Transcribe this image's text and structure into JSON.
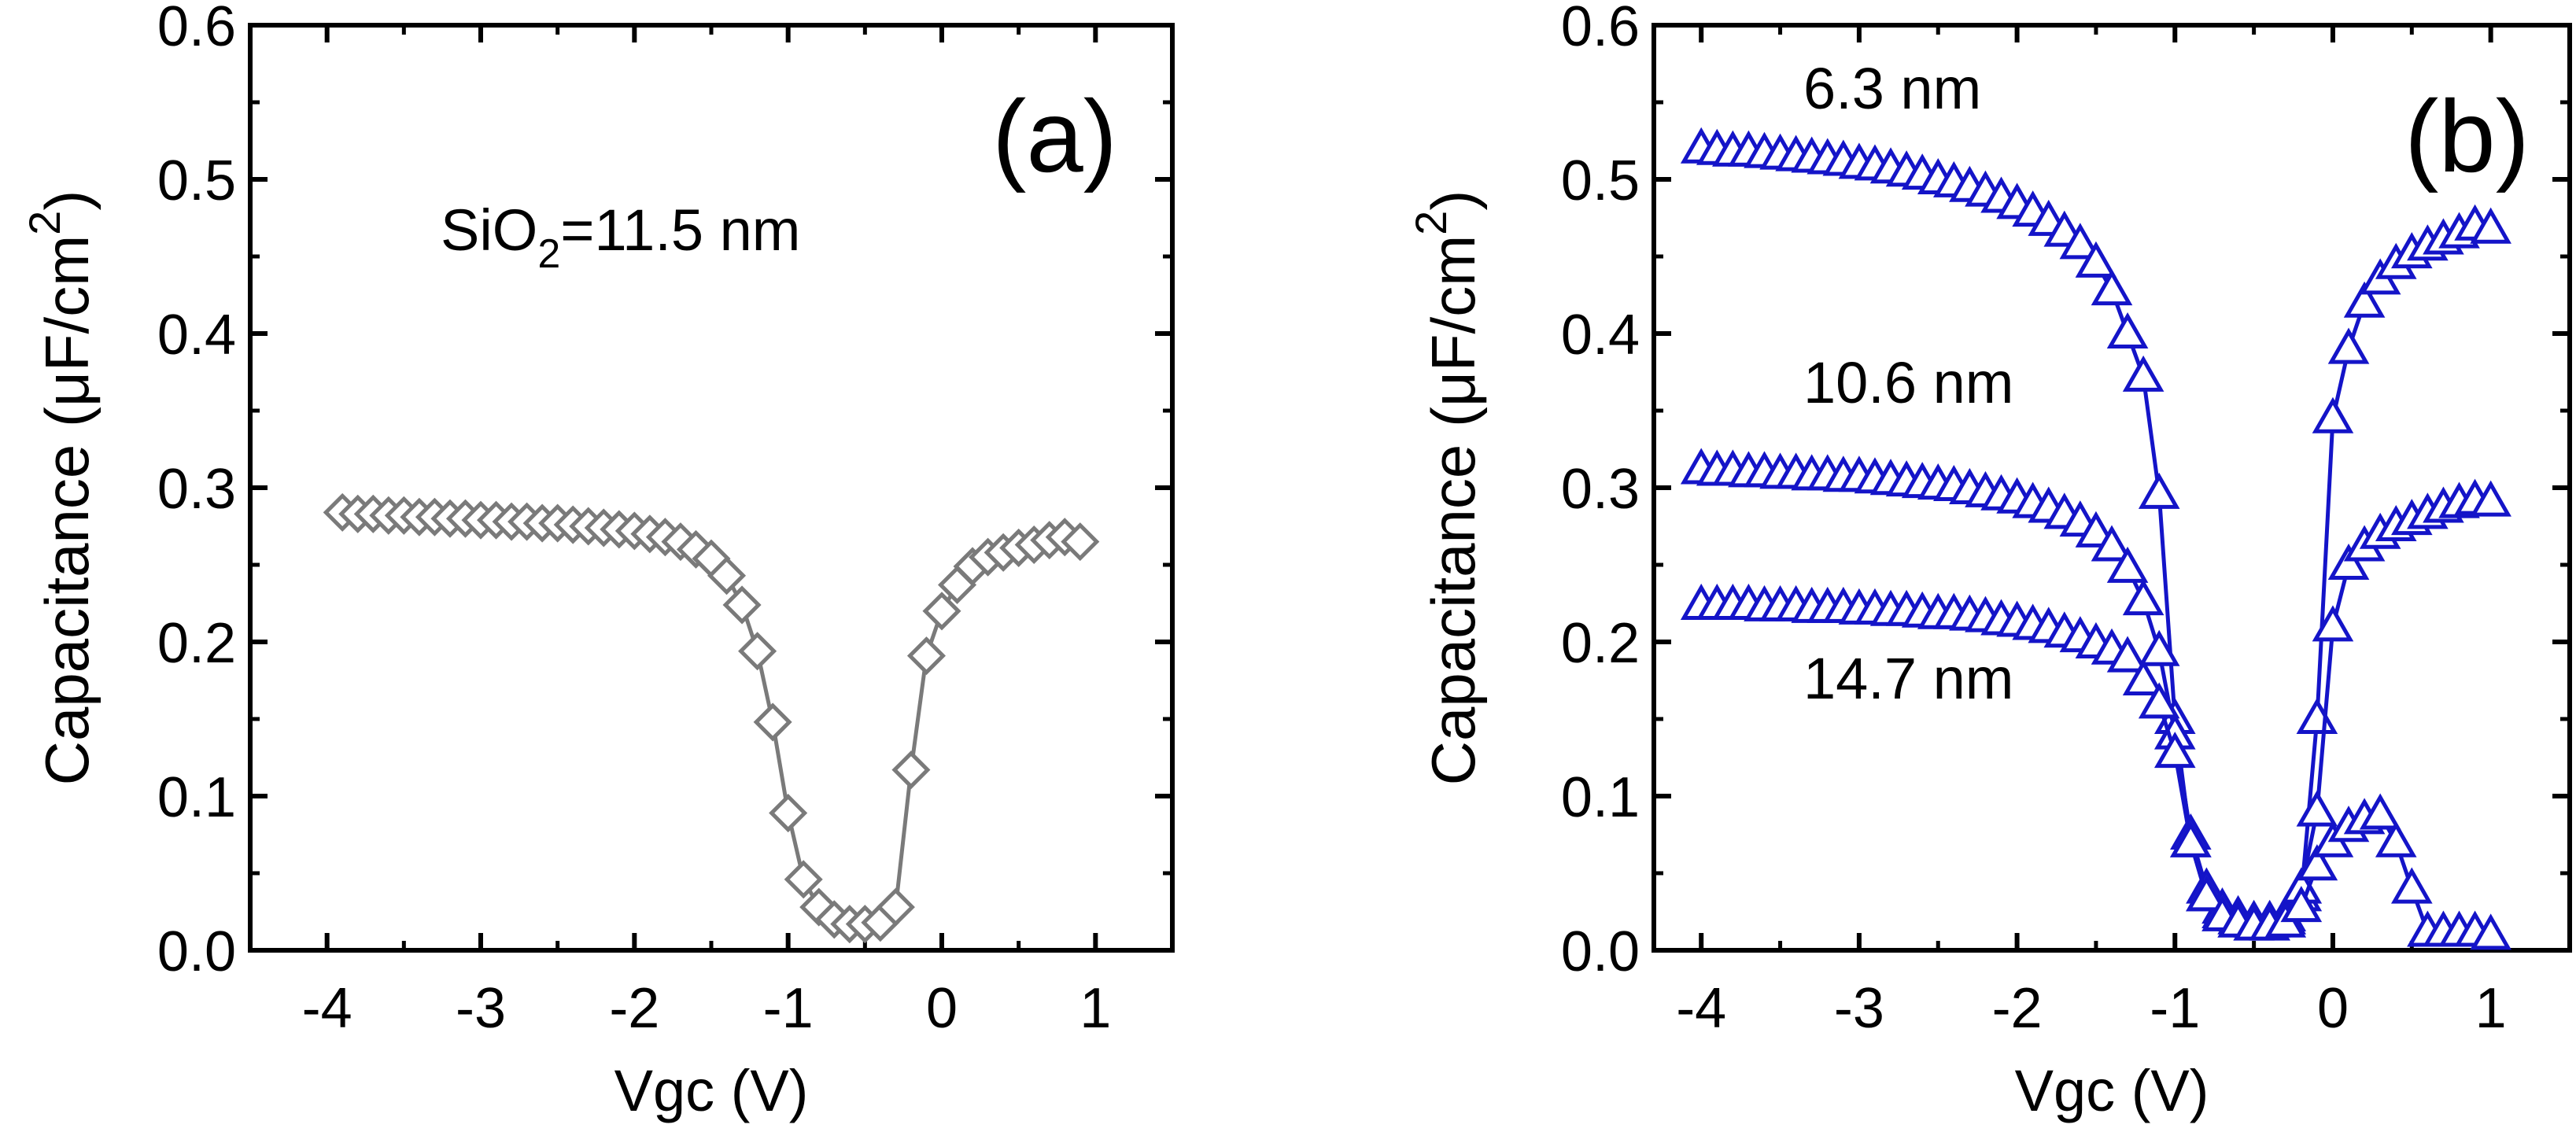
{
  "chart_data": [
    {
      "type": "line",
      "panel_label": "(a)",
      "xlabel": "Vgc (V)",
      "ylabel": "Capacitance (μF/cm²)",
      "ylabel_parts": {
        "main": "Capacitance (μF/cm",
        "sup": "2",
        "close": ")"
      },
      "xlim": [
        -4.5,
        1.5
      ],
      "ylim": [
        0.0,
        0.6
      ],
      "xticks": [
        "-4",
        "-3",
        "-2",
        "-1",
        "0",
        "1"
      ],
      "yticks": [
        "0.0",
        "0.1",
        "0.2",
        "0.3",
        "0.4",
        "0.5",
        "0.6"
      ],
      "annotation": {
        "text": "SiO2=11.5 nm",
        "parts": {
          "pre": "SiO",
          "sub": "2",
          "post": "=11.5 nm"
        }
      },
      "color": "#7a7a7a",
      "marker": "diamond",
      "series": [
        {
          "name": "SiO2=11.5 nm",
          "x": [
            -3.9,
            -3.8,
            -3.7,
            -3.6,
            -3.5,
            -3.4,
            -3.3,
            -3.2,
            -3.1,
            -3.0,
            -2.9,
            -2.8,
            -2.7,
            -2.6,
            -2.5,
            -2.4,
            -2.3,
            -2.2,
            -2.1,
            -2.0,
            -1.9,
            -1.8,
            -1.7,
            -1.6,
            -1.5,
            -1.4,
            -1.3,
            -1.2,
            -1.1,
            -1.0,
            -0.9,
            -0.8,
            -0.7,
            -0.6,
            -0.5,
            -0.4,
            -0.3,
            -0.2,
            -0.1,
            0.0,
            0.1,
            0.2,
            0.3,
            0.4,
            0.5,
            0.6,
            0.7,
            0.8,
            0.9
          ],
          "y": [
            0.284,
            0.283,
            0.283,
            0.282,
            0.282,
            0.281,
            0.281,
            0.28,
            0.28,
            0.279,
            0.279,
            0.278,
            0.278,
            0.277,
            0.277,
            0.276,
            0.275,
            0.274,
            0.273,
            0.272,
            0.27,
            0.268,
            0.265,
            0.26,
            0.254,
            0.243,
            0.224,
            0.194,
            0.148,
            0.089,
            0.046,
            0.028,
            0.02,
            0.017,
            0.017,
            0.018,
            0.028,
            0.117,
            0.191,
            0.22,
            0.237,
            0.249,
            0.255,
            0.258,
            0.261,
            0.263,
            0.266,
            0.268,
            0.265
          ]
        }
      ]
    },
    {
      "type": "line",
      "panel_label": "(b)",
      "xlabel": "Vgc (V)",
      "ylabel": "Capacitance (μF/cm²)",
      "ylabel_parts": {
        "main": "Capacitance (μF/cm",
        "sup": "2",
        "close": ")"
      },
      "xlim": [
        -4.3,
        1.5
      ],
      "ylim": [
        0.0,
        0.6
      ],
      "xticks": [
        "-4",
        "-3",
        "-2",
        "-1",
        "0",
        "1"
      ],
      "yticks": [
        "0.0",
        "0.1",
        "0.2",
        "0.3",
        "0.4",
        "0.5",
        "0.6"
      ],
      "color": "#1414c8",
      "marker": "triangle",
      "labels": [
        "6.3 nm",
        "10.6 nm",
        "14.7 nm"
      ],
      "series": [
        {
          "name": "6.3 nm",
          "x": [
            -4.0,
            -3.9,
            -3.8,
            -3.7,
            -3.6,
            -3.5,
            -3.4,
            -3.3,
            -3.2,
            -3.1,
            -3.0,
            -2.9,
            -2.8,
            -2.7,
            -2.6,
            -2.5,
            -2.4,
            -2.3,
            -2.2,
            -2.1,
            -2.0,
            -1.9,
            -1.8,
            -1.7,
            -1.6,
            -1.5,
            -1.4,
            -1.3,
            -1.2,
            -1.1,
            -1.0,
            -0.9,
            -0.8,
            -0.7,
            -0.6,
            -0.5,
            -0.4,
            -0.3,
            -0.2,
            -0.1,
            0.0,
            0.1,
            0.2,
            0.3,
            0.4,
            0.5,
            0.6,
            0.7,
            0.8,
            0.9,
            1.0
          ],
          "y": [
            0.52,
            0.519,
            0.518,
            0.518,
            0.517,
            0.516,
            0.515,
            0.514,
            0.513,
            0.512,
            0.51,
            0.509,
            0.507,
            0.505,
            0.503,
            0.5,
            0.498,
            0.495,
            0.492,
            0.488,
            0.484,
            0.479,
            0.473,
            0.466,
            0.458,
            0.446,
            0.428,
            0.4,
            0.372,
            0.296,
            0.15,
            0.07,
            0.035,
            0.024,
            0.02,
            0.018,
            0.018,
            0.02,
            0.035,
            0.15,
            0.345,
            0.39,
            0.42,
            0.435,
            0.445,
            0.452,
            0.457,
            0.461,
            0.465,
            0.47,
            0.468
          ]
        },
        {
          "name": "10.6 nm",
          "x": [
            -4.0,
            -3.9,
            -3.8,
            -3.7,
            -3.6,
            -3.5,
            -3.4,
            -3.3,
            -3.2,
            -3.1,
            -3.0,
            -2.9,
            -2.8,
            -2.7,
            -2.6,
            -2.5,
            -2.4,
            -2.3,
            -2.2,
            -2.1,
            -2.0,
            -1.9,
            -1.8,
            -1.7,
            -1.6,
            -1.5,
            -1.4,
            -1.3,
            -1.2,
            -1.1,
            -1.0,
            -0.9,
            -0.8,
            -0.7,
            -0.6,
            -0.5,
            -0.4,
            -0.3,
            -0.2,
            -0.1,
            0.0,
            0.1,
            0.2,
            0.3,
            0.4,
            0.5,
            0.6,
            0.7,
            0.8,
            0.9,
            1.0
          ],
          "y": [
            0.312,
            0.311,
            0.311,
            0.31,
            0.31,
            0.309,
            0.309,
            0.308,
            0.308,
            0.307,
            0.307,
            0.306,
            0.305,
            0.304,
            0.303,
            0.302,
            0.301,
            0.299,
            0.297,
            0.295,
            0.293,
            0.29,
            0.287,
            0.283,
            0.278,
            0.271,
            0.262,
            0.248,
            0.227,
            0.194,
            0.14,
            0.075,
            0.04,
            0.027,
            0.022,
            0.019,
            0.019,
            0.022,
            0.04,
            0.09,
            0.21,
            0.25,
            0.262,
            0.27,
            0.275,
            0.279,
            0.283,
            0.287,
            0.29,
            0.292,
            0.291
          ]
        },
        {
          "name": "14.7 nm",
          "x": [
            -4.0,
            -3.9,
            -3.8,
            -3.7,
            -3.6,
            -3.5,
            -3.4,
            -3.3,
            -3.2,
            -3.1,
            -3.0,
            -2.9,
            -2.8,
            -2.7,
            -2.6,
            -2.5,
            -2.4,
            -2.3,
            -2.2,
            -2.1,
            -2.0,
            -1.9,
            -1.8,
            -1.7,
            -1.6,
            -1.5,
            -1.4,
            -1.3,
            -1.2,
            -1.1,
            -1.0,
            -0.9,
            -0.8,
            -0.7,
            -0.6,
            -0.5,
            -0.4,
            -0.3,
            -0.2,
            -0.1,
            0.0,
            0.1,
            0.2,
            0.3,
            0.4,
            0.5,
            0.6,
            0.7,
            0.8,
            0.9,
            1.0
          ],
          "y": [
            0.224,
            0.224,
            0.224,
            0.224,
            0.223,
            0.223,
            0.223,
            0.222,
            0.222,
            0.222,
            0.221,
            0.221,
            0.22,
            0.22,
            0.219,
            0.218,
            0.218,
            0.217,
            0.216,
            0.214,
            0.213,
            0.211,
            0.209,
            0.206,
            0.203,
            0.199,
            0.195,
            0.19,
            0.175,
            0.16,
            0.128,
            0.07,
            0.035,
            0.022,
            0.018,
            0.016,
            0.016,
            0.018,
            0.028,
            0.055,
            0.07,
            0.08,
            0.085,
            0.088,
            0.07,
            0.04,
            0.012,
            0.012,
            0.012,
            0.012,
            0.01
          ]
        }
      ]
    }
  ]
}
